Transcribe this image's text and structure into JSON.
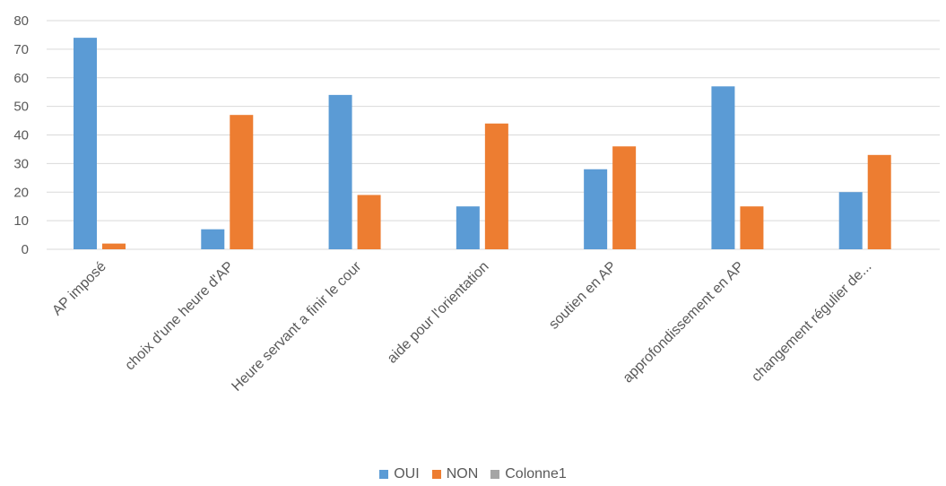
{
  "chart_data": {
    "type": "bar",
    "title": "",
    "xlabel": "",
    "ylabel": "",
    "ylim": [
      0,
      80
    ],
    "yticks": [
      0,
      10,
      20,
      30,
      40,
      50,
      60,
      70,
      80
    ],
    "grid": true,
    "legend_position": "bottom",
    "categories": [
      "AP imposé",
      "choix d'une heure d'AP",
      "Heure servant a finir le cour",
      "aide pour l'orientation",
      "soutien en AP",
      "approfondissement en AP",
      "changement régulier de..."
    ],
    "series": [
      {
        "name": "OUI",
        "color": "#5B9BD5",
        "values": [
          74,
          7,
          54,
          15,
          28,
          57,
          20
        ]
      },
      {
        "name": "NON",
        "color": "#ED7D31",
        "values": [
          2,
          47,
          19,
          44,
          36,
          15,
          33
        ]
      },
      {
        "name": "Colonne1",
        "color": "#A5A5A5",
        "values": [
          0,
          0,
          0,
          0,
          0,
          0,
          0
        ]
      }
    ]
  }
}
